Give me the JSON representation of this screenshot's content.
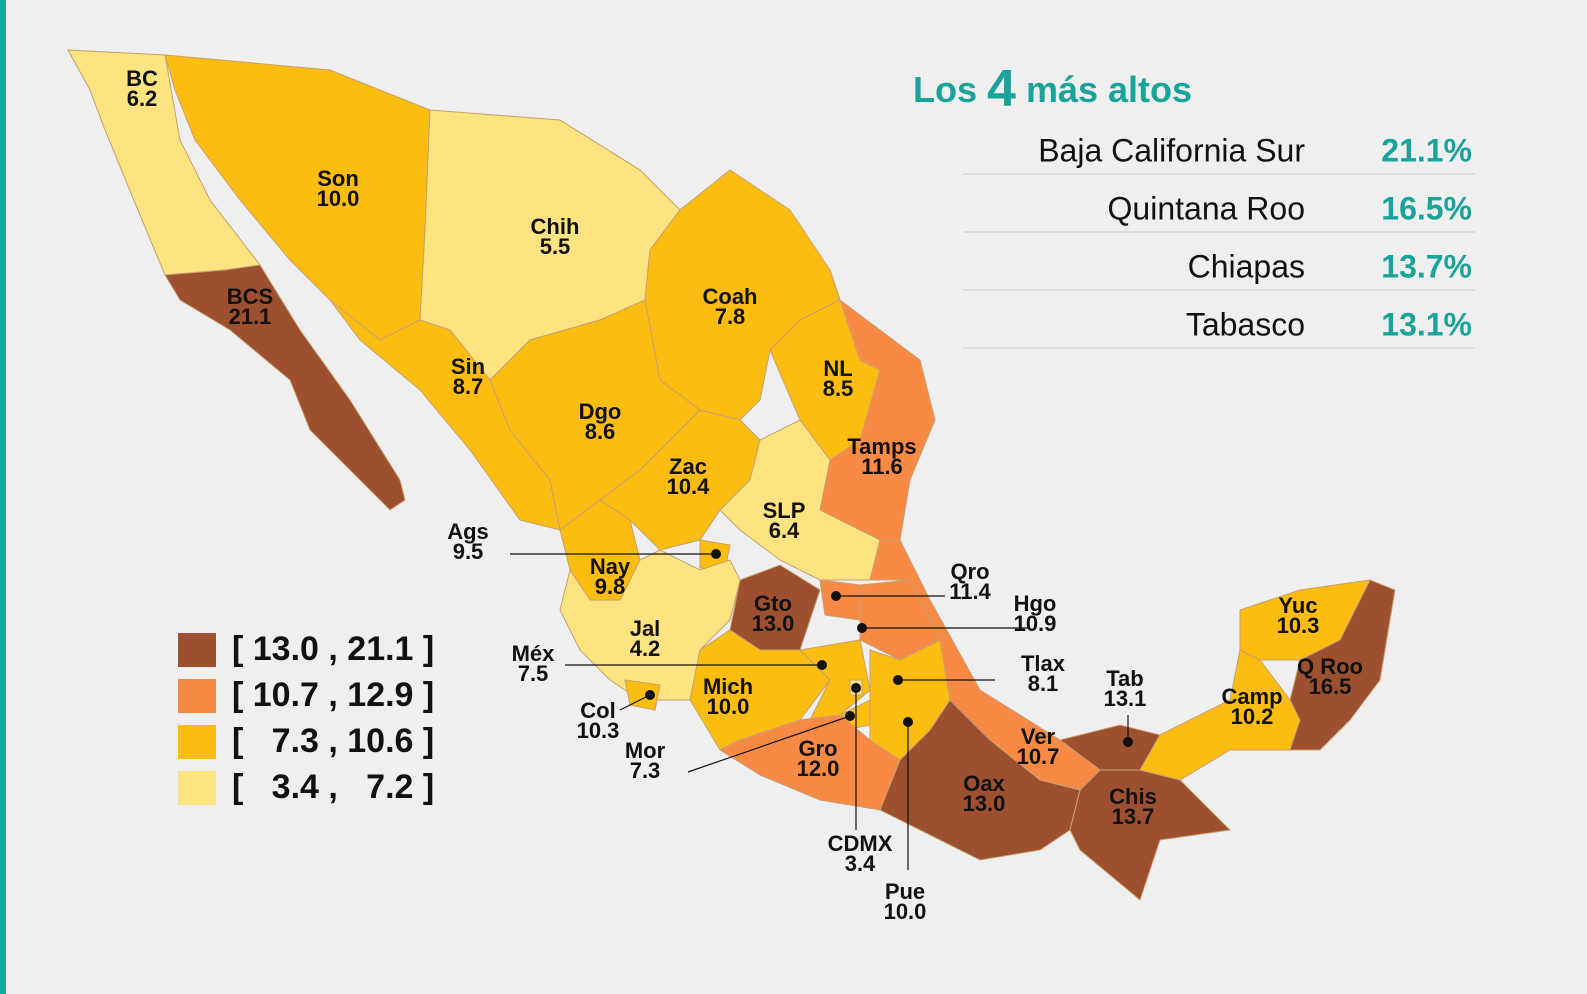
{
  "title": {
    "prefix": "Los",
    "number": 4,
    "suffix": "más altos"
  },
  "top": [
    {
      "name": "Baja California Sur",
      "value": "21.1%"
    },
    {
      "name": "Quintana Roo",
      "value": "16.5%"
    },
    {
      "name": "Chiapas",
      "value": "13.7%"
    },
    {
      "name": "Tabasco",
      "value": "13.1%"
    }
  ],
  "legend": [
    {
      "label": "[ 13.0 , 21.1 ]",
      "color": "#9c5030"
    },
    {
      "label": "[ 10.7 , 12.9 ]",
      "color": "#f98a45"
    },
    {
      "label": "[   7.3 , 10.6 ]",
      "color": "#fcbd10"
    },
    {
      "label": "[   3.4 ,   7.2 ]",
      "color": "#fde480"
    }
  ],
  "states": [
    {
      "abbr": "BC",
      "value": "6.2",
      "color": "#fde480"
    },
    {
      "abbr": "Son",
      "value": "10.0",
      "color": "#fcbd10"
    },
    {
      "abbr": "Chih",
      "value": "5.5",
      "color": "#fde480"
    },
    {
      "abbr": "Coah",
      "value": "7.8",
      "color": "#fcbd10"
    },
    {
      "abbr": "NL",
      "value": "8.5",
      "color": "#fcbd10"
    },
    {
      "abbr": "Tamps",
      "value": "11.6",
      "color": "#f98a45"
    },
    {
      "abbr": "BCS",
      "value": "21.1",
      "color": "#9c5030"
    },
    {
      "abbr": "Sin",
      "value": "8.7",
      "color": "#fcbd10"
    },
    {
      "abbr": "Dgo",
      "value": "8.6",
      "color": "#fcbd10"
    },
    {
      "abbr": "Zac",
      "value": "10.4",
      "color": "#fcbd10"
    },
    {
      "abbr": "SLP",
      "value": "6.4",
      "color": "#fde480"
    },
    {
      "abbr": "Ags",
      "value": "9.5",
      "color": "#fcbd10"
    },
    {
      "abbr": "Nay",
      "value": "9.8",
      "color": "#fcbd10"
    },
    {
      "abbr": "Jal",
      "value": "4.2",
      "color": "#fde480"
    },
    {
      "abbr": "Col",
      "value": "10.3",
      "color": "#fcbd10"
    },
    {
      "abbr": "Gto",
      "value": "13.0",
      "color": "#9c5030"
    },
    {
      "abbr": "Qro",
      "value": "11.4",
      "color": "#f98a45"
    },
    {
      "abbr": "Hgo",
      "value": "10.9",
      "color": "#f98a45"
    },
    {
      "abbr": "Mich",
      "value": "10.0",
      "color": "#fcbd10"
    },
    {
      "abbr": "Méx",
      "value": "7.5",
      "color": "#fcbd10"
    },
    {
      "abbr": "CDMX",
      "value": "3.4",
      "color": "#fde480"
    },
    {
      "abbr": "Mor",
      "value": "7.3",
      "color": "#fcbd10"
    },
    {
      "abbr": "Tlax",
      "value": "8.1",
      "color": "#fcbd10"
    },
    {
      "abbr": "Pue",
      "value": "10.0",
      "color": "#fcbd10"
    },
    {
      "abbr": "Gro",
      "value": "12.0",
      "color": "#f98a45"
    },
    {
      "abbr": "Ver",
      "value": "10.7",
      "color": "#f98a45"
    },
    {
      "abbr": "Oax",
      "value": "13.0",
      "color": "#9c5030"
    },
    {
      "abbr": "Tab",
      "value": "13.1",
      "color": "#9c5030"
    },
    {
      "abbr": "Chis",
      "value": "13.7",
      "color": "#9c5030"
    },
    {
      "abbr": "Camp",
      "value": "10.2",
      "color": "#fcbd10"
    },
    {
      "abbr": "Yuc",
      "value": "10.3",
      "color": "#fcbd10"
    },
    {
      "abbr": "Q Roo",
      "value": "16.5",
      "color": "#9c5030"
    }
  ]
}
